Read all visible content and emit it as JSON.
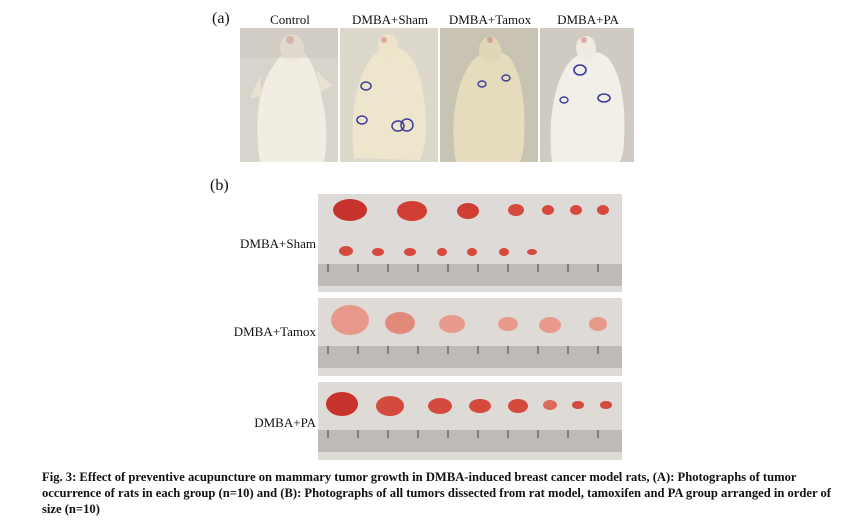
{
  "figure": {
    "panel_a_label": "(a)",
    "panel_b_label": "(b)",
    "group_labels": [
      "Control",
      "DMBA+Sham",
      "DMBA+Tamox",
      "DMBA+PA"
    ],
    "row_labels": [
      "DMBA+Sham",
      "DMBA+Tamox",
      "DMBA+PA"
    ],
    "caption": "Fig. 3: Effect of preventive acupuncture on mammary tumor growth in DMBA-induced breast cancer model rats, (A): Photographs of tumor occurrence of rats in each group (n=10) and (B): Photographs of all tumors dissected from rat model, tamoxifen and PA group arranged in order of size (n=10)"
  },
  "colors": {
    "tumor": "#c8322c",
    "tumor_pale": "#e79a8a",
    "bench": "#d9d6d4",
    "fur": "#ece6d6",
    "circle": "#3b3b9a"
  }
}
